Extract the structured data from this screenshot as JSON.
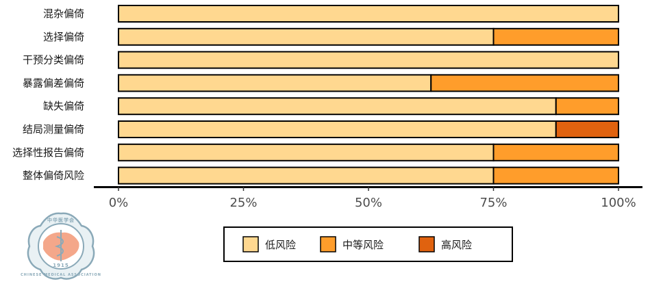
{
  "chart_data": {
    "type": "bar",
    "orientation": "horizontal",
    "stacked": true,
    "categories": [
      "混杂偏倚",
      "选择偏倚",
      "干预分类偏倚",
      "暴露偏差偏倚",
      "缺失偏倚",
      "结局测量偏倚",
      "选择性报告偏倚",
      "整体偏倚风险"
    ],
    "series": [
      {
        "name": "低风险",
        "color": "#FFD890",
        "values": [
          100,
          75,
          100,
          62.5,
          87.5,
          87.5,
          75,
          75
        ]
      },
      {
        "name": "中等风险",
        "color": "#FF9D2B",
        "values": [
          0,
          25,
          0,
          37.5,
          12.5,
          0,
          25,
          25
        ]
      },
      {
        "name": "高风险",
        "color": "#E0620F",
        "values": [
          0,
          0,
          0,
          0,
          0,
          12.5,
          0,
          0
        ]
      }
    ],
    "xlim": [
      0,
      100
    ],
    "ticks": [
      "0%",
      "25%",
      "50%",
      "75%",
      "100%"
    ],
    "tick_values": [
      0,
      25,
      50,
      75,
      100
    ],
    "legend_position": "bottom",
    "grid": false,
    "title": "",
    "xlabel": "",
    "ylabel": ""
  },
  "logo": {
    "name": "chinese-medical-association-logo",
    "cn_text": "中华医学会",
    "en_text": "CHINESE MEDICAL ASSOCIATION",
    "year": "1915",
    "color": "#8aa9b8"
  }
}
